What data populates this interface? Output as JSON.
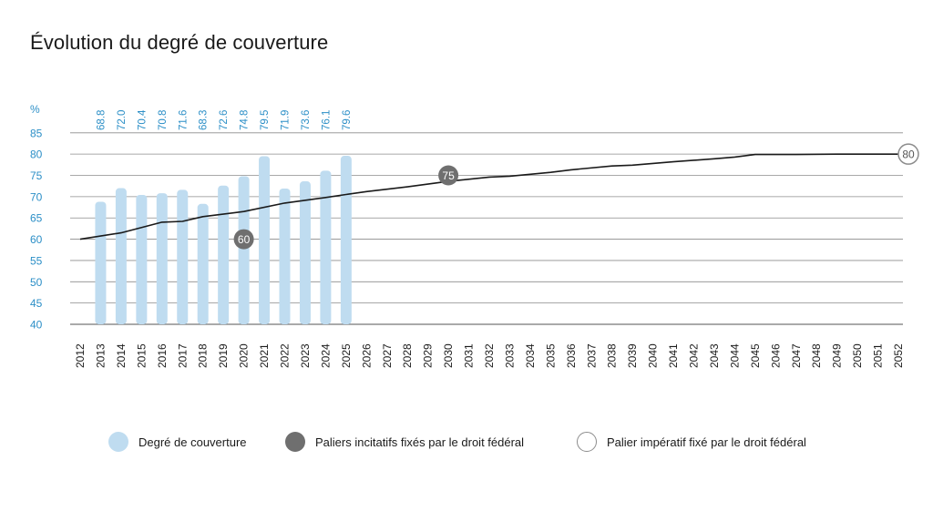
{
  "title": "Évolution du degré de couverture",
  "chart_data": {
    "type": "bar",
    "unit_label": "%",
    "ylim": [
      40,
      85
    ],
    "y_ticks": [
      40,
      45,
      50,
      55,
      60,
      65,
      70,
      75,
      80,
      85
    ],
    "years": [
      "2012",
      "2013",
      "2014",
      "2015",
      "2016",
      "2017",
      "2018",
      "2019",
      "2020",
      "2021",
      "2022",
      "2023",
      "2024",
      "2025",
      "2026",
      "2027",
      "2028",
      "2029",
      "2030",
      "2031",
      "2032",
      "2033",
      "2034",
      "2035",
      "2036",
      "2037",
      "2038",
      "2039",
      "2040",
      "2041",
      "2042",
      "2043",
      "2044",
      "2045",
      "2046",
      "2047",
      "2048",
      "2049",
      "2050",
      "2051",
      "2052"
    ],
    "series": [
      {
        "name": "Degré de couverture",
        "color": "#bfdcf0",
        "x": [
          "2013",
          "2014",
          "2015",
          "2016",
          "2017",
          "2018",
          "2019",
          "2020",
          "2021",
          "2022",
          "2023",
          "2024",
          "2025"
        ],
        "values": [
          68.8,
          72.0,
          70.4,
          70.8,
          71.6,
          68.3,
          72.6,
          74.8,
          79.5,
          71.9,
          73.6,
          76.1,
          79.6
        ],
        "labels": [
          "68.8",
          "72.0",
          "70.4",
          "70.8",
          "71.6",
          "68.3",
          "72.6",
          "74.8",
          "79.5",
          "71.9",
          "73.6",
          "76.1",
          "79.6"
        ]
      },
      {
        "type": "line",
        "color": "#1a1a1a",
        "x": [
          2012,
          2014,
          2016,
          2017,
          2018,
          2020,
          2022,
          2024,
          2025,
          2026,
          2028,
          2030,
          2032,
          2033,
          2035,
          2036,
          2038,
          2039,
          2041,
          2043,
          2044,
          2045,
          2047,
          2049,
          2052
        ],
        "values": [
          60,
          61.5,
          64,
          64.2,
          65.3,
          66.5,
          68.5,
          69.8,
          70.5,
          71.2,
          72.3,
          73.6,
          74.6,
          74.8,
          75.7,
          76.3,
          77.2,
          77.4,
          78.2,
          78.9,
          79.3,
          79.9,
          79.9,
          80,
          80
        ]
      }
    ],
    "milestones": [
      {
        "year": 2020,
        "value": 60,
        "label": "60",
        "kind": "incitatif"
      },
      {
        "year": 2030,
        "value": 75,
        "label": "75",
        "kind": "incitatif"
      },
      {
        "year": 2052,
        "value": 80,
        "label": "80",
        "kind": "imperatif"
      }
    ],
    "colors": {
      "tick_labels": "#2c8fc7",
      "gridline": "#8c8c8c",
      "milestone_filled": "#6f6f6f",
      "milestone_open_border": "#8c8c8c"
    }
  },
  "legend": {
    "coverage": "Degré de couverture",
    "incitatif": "Paliers incitatifs fixés par le droit fédéral",
    "imperatif": "Palier impératif fixé par le droit fédéral"
  }
}
